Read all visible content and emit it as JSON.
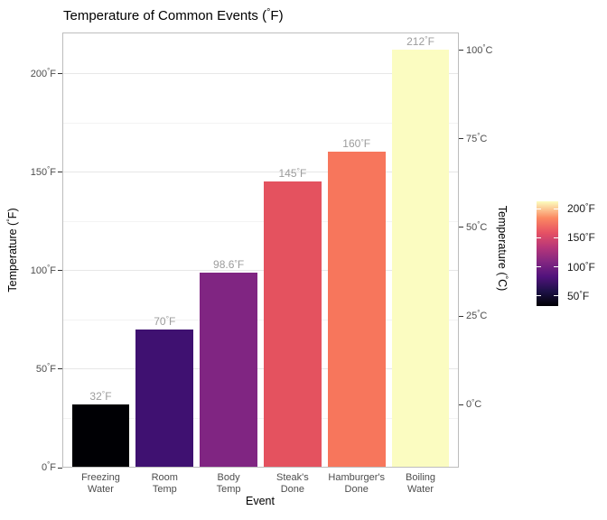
{
  "title": "Temperature of Common Events (°F)",
  "chart_data": {
    "type": "bar",
    "title": "Temperature of Common Events (°F)",
    "xlabel": "Event",
    "ylabel_left": "Temperature (°F)",
    "ylabel_right": "Temperature (°C)",
    "categories": [
      [
        "Freezing",
        "Water"
      ],
      [
        "Room",
        "Temp"
      ],
      [
        "Body",
        "Temp"
      ],
      [
        "Steak's",
        "Done"
      ],
      [
        "Hamburger's",
        "Done"
      ],
      [
        "Boiling",
        "Water"
      ]
    ],
    "values": [
      32,
      70,
      98.6,
      145,
      160,
      212
    ],
    "bar_labels": [
      "32°F",
      "70°F",
      "98.6°F",
      "145°F",
      "160°F",
      "212°F"
    ],
    "bar_colors": [
      "#000004",
      "#3F1171",
      "#802582",
      "#E4525F",
      "#F7765C",
      "#FBFCC1"
    ],
    "ylim_f": [
      0,
      222
    ],
    "grid": true,
    "y_ticks_f": [
      {
        "f": 0,
        "label": "0°F"
      },
      {
        "f": 50,
        "label": "50°F"
      },
      {
        "f": 100,
        "label": "100°F"
      },
      {
        "f": 150,
        "label": "150°F"
      },
      {
        "f": 200,
        "label": "200°F"
      }
    ],
    "y_minor_f": [
      25,
      75,
      125,
      175
    ],
    "y_ticks_c": [
      {
        "c": 0,
        "label": "0°C"
      },
      {
        "c": 25,
        "label": "25°C"
      },
      {
        "c": 50,
        "label": "50°C"
      },
      {
        "c": 75,
        "label": "75°C"
      },
      {
        "c": 100,
        "label": "100°C"
      }
    ],
    "legend": {
      "position": "right",
      "domain_f": [
        32,
        212
      ],
      "ticks": [
        {
          "f": 50,
          "label": "50°F"
        },
        {
          "f": 100,
          "label": "100°F"
        },
        {
          "f": 150,
          "label": "150°F"
        },
        {
          "f": 200,
          "label": "200°F"
        }
      ],
      "gradient_stops": [
        [
          0,
          "#000004"
        ],
        [
          0.14,
          "#1D1147"
        ],
        [
          0.28,
          "#51127C"
        ],
        [
          0.42,
          "#822681"
        ],
        [
          0.56,
          "#B63679"
        ],
        [
          0.7,
          "#E65164"
        ],
        [
          0.84,
          "#FB8861"
        ],
        [
          1,
          "#FCFDBF"
        ]
      ]
    }
  }
}
